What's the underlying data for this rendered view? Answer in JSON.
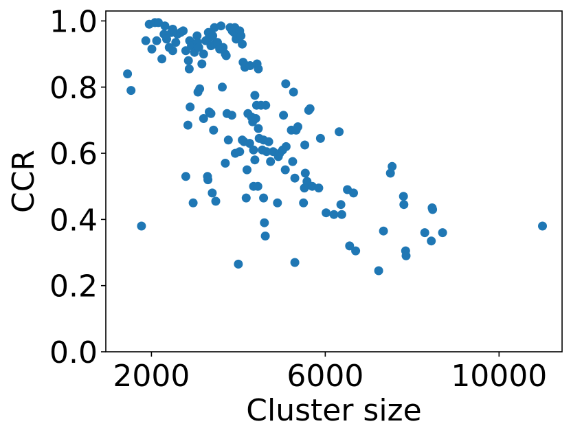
{
  "chart_data": {
    "type": "scatter",
    "xlabel": "Cluster size",
    "ylabel": "CCR",
    "xlim": [
      950,
      11450
    ],
    "ylim": [
      0.0,
      1.03
    ],
    "xticks": [
      2000,
      6000,
      10000
    ],
    "xtick_labels": [
      "2000",
      "6000",
      "10000"
    ],
    "yticks": [
      0.0,
      0.2,
      0.4,
      0.6,
      0.8,
      1.0
    ],
    "ytick_labels": [
      "0.0",
      "0.2",
      "0.4",
      "0.6",
      "0.8",
      "1.0"
    ],
    "grid": false,
    "marker_color": "#1f77b4",
    "points": [
      [
        1450,
        0.84
      ],
      [
        1530,
        0.79
      ],
      [
        1770,
        0.38
      ],
      [
        1870,
        0.94
      ],
      [
        1950,
        0.99
      ],
      [
        2010,
        0.915
      ],
      [
        2080,
        0.995
      ],
      [
        2120,
        0.94
      ],
      [
        2160,
        0.995
      ],
      [
        2240,
        0.885
      ],
      [
        2290,
        0.96
      ],
      [
        2310,
        0.985
      ],
      [
        2350,
        0.945
      ],
      [
        2410,
        0.92
      ],
      [
        2460,
        0.965
      ],
      [
        2490,
        0.91
      ],
      [
        2490,
        0.975
      ],
      [
        2560,
        0.935
      ],
      [
        2600,
        0.96
      ],
      [
        2670,
        0.965
      ],
      [
        2730,
        0.97
      ],
      [
        2790,
        0.91
      ],
      [
        2850,
        0.88
      ],
      [
        2870,
        0.855
      ],
      [
        2880,
        0.94
      ],
      [
        2920,
        0.925
      ],
      [
        2990,
        0.905
      ],
      [
        3050,
        0.955
      ],
      [
        3060,
        0.935
      ],
      [
        3090,
        0.92
      ],
      [
        3160,
        0.87
      ],
      [
        3200,
        0.9
      ],
      [
        3250,
        0.94
      ],
      [
        3310,
        0.965
      ],
      [
        3330,
        0.95
      ],
      [
        3370,
        0.925
      ],
      [
        3410,
        0.955
      ],
      [
        3450,
        0.98
      ],
      [
        3460,
        0.93
      ],
      [
        3520,
        0.935
      ],
      [
        3570,
        0.915
      ],
      [
        3600,
        0.985
      ],
      [
        3650,
        0.92
      ],
      [
        3700,
        0.9
      ],
      [
        3720,
        0.895
      ],
      [
        3810,
        0.98
      ],
      [
        3860,
        0.97
      ],
      [
        3900,
        0.965
      ],
      [
        3920,
        0.98
      ],
      [
        3950,
        0.945
      ],
      [
        4000,
        0.96
      ],
      [
        4030,
        0.97
      ],
      [
        4060,
        0.955
      ],
      [
        4090,
        0.93
      ],
      [
        4110,
        0.875
      ],
      [
        4150,
        0.86
      ],
      [
        4180,
        0.865
      ],
      [
        4270,
        0.865
      ],
      [
        4430,
        0.87
      ],
      [
        4460,
        0.855
      ],
      [
        2790,
        0.53
      ],
      [
        2840,
        0.685
      ],
      [
        2890,
        0.74
      ],
      [
        2960,
        0.45
      ],
      [
        3070,
        0.785
      ],
      [
        3110,
        0.795
      ],
      [
        3200,
        0.705
      ],
      [
        3290,
        0.53
      ],
      [
        3300,
        0.52
      ],
      [
        3330,
        0.725
      ],
      [
        3370,
        0.72
      ],
      [
        3400,
        0.48
      ],
      [
        3430,
        0.67
      ],
      [
        3480,
        0.455
      ],
      [
        3630,
        0.8
      ],
      [
        3700,
        0.57
      ],
      [
        3740,
        0.72
      ],
      [
        3770,
        0.64
      ],
      [
        3850,
        0.715
      ],
      [
        3930,
        0.6
      ],
      [
        4000,
        0.265
      ],
      [
        4030,
        0.605
      ],
      [
        4090,
        0.64
      ],
      [
        4130,
        0.635
      ],
      [
        4180,
        0.465
      ],
      [
        4200,
        0.55
      ],
      [
        4220,
        0.72
      ],
      [
        4260,
        0.63
      ],
      [
        4300,
        0.71
      ],
      [
        4330,
        0.695
      ],
      [
        4350,
        0.61
      ],
      [
        4350,
        0.5
      ],
      [
        4380,
        0.775
      ],
      [
        4380,
        0.58
      ],
      [
        4400,
        0.705
      ],
      [
        4420,
        0.745
      ],
      [
        4450,
        0.5
      ],
      [
        4460,
        0.675
      ],
      [
        4480,
        0.645
      ],
      [
        4520,
        0.745
      ],
      [
        4550,
        0.61
      ],
      [
        4580,
        0.64
      ],
      [
        4580,
        0.465
      ],
      [
        4600,
        0.39
      ],
      [
        4620,
        0.35
      ],
      [
        4630,
        0.745
      ],
      [
        4650,
        0.605
      ],
      [
        4700,
        0.635
      ],
      [
        4740,
        0.575
      ],
      [
        4800,
        0.605
      ],
      [
        4900,
        0.45
      ],
      [
        4920,
        0.59
      ],
      [
        4950,
        0.6
      ],
      [
        5020,
        0.61
      ],
      [
        5040,
        0.715
      ],
      [
        5080,
        0.55
      ],
      [
        5090,
        0.81
      ],
      [
        5100,
        0.62
      ],
      [
        5220,
        0.67
      ],
      [
        5250,
        0.575
      ],
      [
        5270,
        0.785
      ],
      [
        5300,
        0.525
      ],
      [
        5300,
        0.27
      ],
      [
        5330,
        0.67
      ],
      [
        5370,
        0.68
      ],
      [
        5500,
        0.45
      ],
      [
        5520,
        0.495
      ],
      [
        5530,
        0.625
      ],
      [
        5540,
        0.54
      ],
      [
        5580,
        0.515
      ],
      [
        5620,
        0.73
      ],
      [
        5650,
        0.735
      ],
      [
        5700,
        0.5
      ],
      [
        5850,
        0.495
      ],
      [
        5890,
        0.645
      ],
      [
        6020,
        0.42
      ],
      [
        6200,
        0.415
      ],
      [
        6320,
        0.665
      ],
      [
        6360,
        0.445
      ],
      [
        6380,
        0.415
      ],
      [
        6510,
        0.49
      ],
      [
        6560,
        0.32
      ],
      [
        6650,
        0.48
      ],
      [
        6700,
        0.305
      ],
      [
        7230,
        0.245
      ],
      [
        7340,
        0.365
      ],
      [
        7500,
        0.54
      ],
      [
        7540,
        0.56
      ],
      [
        7800,
        0.47
      ],
      [
        7810,
        0.445
      ],
      [
        7850,
        0.305
      ],
      [
        7860,
        0.29
      ],
      [
        8290,
        0.36
      ],
      [
        8440,
        0.335
      ],
      [
        8460,
        0.435
      ],
      [
        8470,
        0.43
      ],
      [
        8700,
        0.36
      ],
      [
        11000,
        0.38
      ]
    ]
  }
}
